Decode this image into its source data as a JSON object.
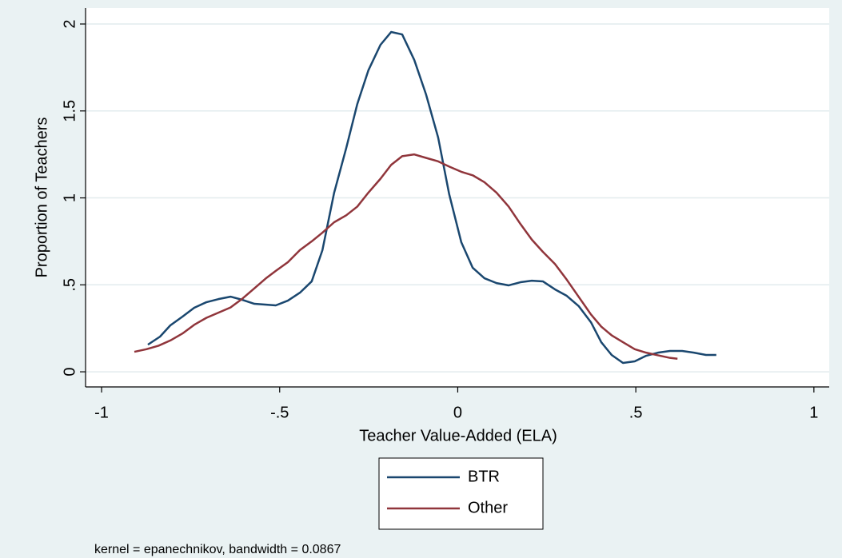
{
  "chart_data": {
    "type": "line",
    "xlabel": "Teacher Value-Added (ELA)",
    "ylabel": "Proportion of Teachers",
    "note": "kernel = epanechnikov, bandwidth = 0.0867",
    "xlim": [
      -1.045,
      1.043
    ],
    "ylim": [
      -0.087,
      2.092
    ],
    "xticks": [
      -1,
      {
        "value": -0.5,
        "label": "-.5"
      },
      0,
      {
        "value": 0.5,
        "label": ".5"
      },
      1
    ],
    "yticks": [
      0,
      {
        "value": 0.5,
        "label": ".5"
      },
      1,
      1.5,
      2
    ],
    "grid": true,
    "legend": "bottom",
    "series": [
      {
        "name": "BTR",
        "color": "#1a476f",
        "x": [
          -0.87,
          -0.836,
          -0.807,
          -0.773,
          -0.74,
          -0.706,
          -0.672,
          -0.638,
          -0.605,
          -0.571,
          -0.537,
          -0.511,
          -0.477,
          -0.443,
          -0.41,
          -0.38,
          -0.347,
          -0.313,
          -0.282,
          -0.251,
          -0.217,
          -0.187,
          -0.156,
          -0.122,
          -0.089,
          -0.055,
          -0.024,
          0.01,
          0.042,
          0.075,
          0.109,
          0.143,
          0.176,
          0.208,
          0.239,
          0.273,
          0.306,
          0.34,
          0.374,
          0.403,
          0.432,
          0.464,
          0.497,
          0.529,
          0.562,
          0.596,
          0.63,
          0.663,
          0.697,
          0.726
        ],
        "values": [
          0.156,
          0.202,
          0.267,
          0.317,
          0.368,
          0.4,
          0.418,
          0.432,
          0.414,
          0.391,
          0.386,
          0.382,
          0.409,
          0.455,
          0.52,
          0.699,
          1.03,
          1.287,
          1.54,
          1.733,
          1.88,
          1.954,
          1.94,
          1.793,
          1.595,
          1.347,
          1.021,
          0.745,
          0.598,
          0.538,
          0.51,
          0.497,
          0.515,
          0.524,
          0.52,
          0.474,
          0.437,
          0.377,
          0.285,
          0.17,
          0.097,
          0.051,
          0.06,
          0.092,
          0.11,
          0.12,
          0.12,
          0.11,
          0.097,
          0.097
        ]
      },
      {
        "name": "Other",
        "color": "#90353b",
        "x": [
          -0.908,
          -0.874,
          -0.84,
          -0.807,
          -0.773,
          -0.74,
          -0.706,
          -0.672,
          -0.638,
          -0.605,
          -0.571,
          -0.537,
          -0.511,
          -0.477,
          -0.443,
          -0.41,
          -0.38,
          -0.347,
          -0.313,
          -0.282,
          -0.251,
          -0.217,
          -0.187,
          -0.156,
          -0.122,
          -0.089,
          -0.055,
          -0.024,
          0.01,
          0.042,
          0.075,
          0.109,
          0.143,
          0.176,
          0.208,
          0.239,
          0.273,
          0.306,
          0.34,
          0.374,
          0.403,
          0.432,
          0.464,
          0.497,
          0.529,
          0.562,
          0.596,
          0.617
        ],
        "values": [
          0.115,
          0.13,
          0.15,
          0.18,
          0.22,
          0.27,
          0.31,
          0.34,
          0.37,
          0.42,
          0.48,
          0.54,
          0.58,
          0.63,
          0.7,
          0.75,
          0.8,
          0.86,
          0.9,
          0.95,
          1.03,
          1.11,
          1.19,
          1.24,
          1.25,
          1.23,
          1.21,
          1.18,
          1.15,
          1.13,
          1.09,
          1.03,
          0.95,
          0.85,
          0.76,
          0.69,
          0.62,
          0.53,
          0.43,
          0.33,
          0.26,
          0.21,
          0.17,
          0.13,
          0.11,
          0.095,
          0.08,
          0.075
        ]
      }
    ]
  }
}
